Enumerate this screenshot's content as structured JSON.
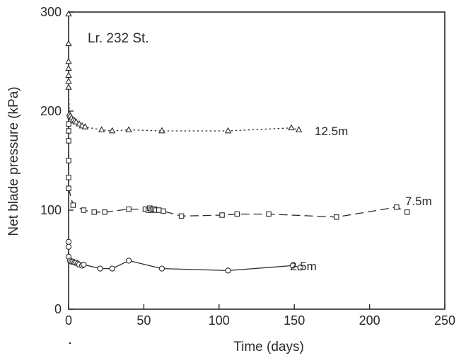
{
  "chart_data": {
    "type": "scatter",
    "title": "",
    "annotation": "Lr. 232 St.",
    "xlabel": "Time (days)",
    "ylabel": "Net blade pressure (kPa)",
    "xlim": [
      0,
      250
    ],
    "ylim": [
      0,
      300
    ],
    "xticks": [
      0,
      50,
      100,
      150,
      200,
      250
    ],
    "yticks": [
      0,
      100,
      200,
      300
    ],
    "grid": false,
    "legend": "none",
    "series": [
      {
        "name": "12.5m",
        "marker": "triangle",
        "line_style": "dotted",
        "x": [
          0,
          0,
          0,
          0,
          0,
          0,
          0,
          0.5,
          1,
          2,
          3,
          4,
          5,
          7,
          9,
          11,
          22,
          29,
          40,
          62,
          106,
          148,
          153
        ],
        "y": [
          298,
          268,
          250,
          243,
          236,
          230,
          224,
          197,
          195,
          193,
          191,
          190,
          189,
          187,
          185,
          184,
          181,
          180,
          181,
          180,
          180,
          183,
          181
        ]
      },
      {
        "name": "7.5m",
        "marker": "square",
        "line_style": "dashed",
        "x": [
          0,
          0,
          0,
          0,
          0,
          0,
          3,
          10,
          17,
          24,
          40,
          51,
          53,
          54,
          55,
          56,
          57,
          58,
          60,
          63,
          75,
          102,
          112,
          133,
          178,
          218,
          225
        ],
        "y": [
          187,
          180,
          170,
          150,
          133,
          122,
          105,
          100,
          98,
          98,
          101,
          101,
          100,
          102,
          100,
          101,
          101,
          100,
          100,
          99,
          94,
          95,
          96,
          96,
          93,
          103,
          98
        ]
      },
      {
        "name": "2.5m",
        "marker": "circle",
        "line_style": "solid",
        "x": [
          0,
          0,
          0,
          1,
          2,
          3,
          4,
          5,
          6,
          7,
          9,
          10,
          21,
          29,
          40,
          62,
          106,
          149,
          154
        ],
        "y": [
          68,
          63,
          53,
          49,
          48,
          48,
          47,
          47,
          46,
          45,
          44,
          45,
          41,
          41,
          49,
          41,
          39,
          44,
          42
        ]
      }
    ]
  }
}
